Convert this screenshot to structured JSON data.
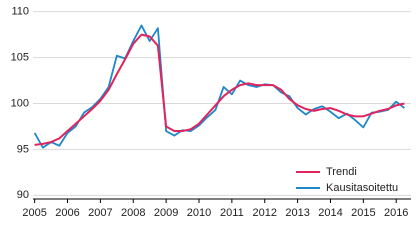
{
  "chart_data": {
    "type": "line",
    "x": [
      2005.0,
      2005.25,
      2005.5,
      2005.75,
      2006.0,
      2006.25,
      2006.5,
      2006.75,
      2007.0,
      2007.25,
      2007.5,
      2007.75,
      2008.0,
      2008.25,
      2008.5,
      2008.75,
      2009.0,
      2009.25,
      2009.5,
      2009.75,
      2010.0,
      2010.25,
      2010.5,
      2010.75,
      2011.0,
      2011.25,
      2011.5,
      2011.75,
      2012.0,
      2012.25,
      2012.5,
      2012.75,
      2013.0,
      2013.25,
      2013.5,
      2013.75,
      2014.0,
      2014.25,
      2014.5,
      2014.75,
      2015.0,
      2015.25,
      2015.5,
      2015.75,
      2016.0,
      2016.25
    ],
    "series": [
      {
        "name": "Trendi",
        "color": "#e0245e",
        "values": [
          95.5,
          95.6,
          95.8,
          96.2,
          97.0,
          97.8,
          98.6,
          99.4,
          100.3,
          101.5,
          103.2,
          104.8,
          106.5,
          107.5,
          107.3,
          106.3,
          97.5,
          97.0,
          97.0,
          97.2,
          97.8,
          98.8,
          99.8,
          100.8,
          101.5,
          102.0,
          102.2,
          102.0,
          102.0,
          102.0,
          101.5,
          100.5,
          99.8,
          99.4,
          99.2,
          99.4,
          99.5,
          99.2,
          98.8,
          98.6,
          98.6,
          98.9,
          99.2,
          99.4,
          99.8,
          100.0
        ]
      },
      {
        "name": "Kausitasoitettu",
        "color": "#1f87c9",
        "values": [
          96.8,
          95.2,
          95.8,
          95.4,
          96.8,
          97.5,
          99.0,
          99.6,
          100.5,
          101.8,
          105.2,
          104.9,
          106.8,
          108.5,
          106.8,
          108.2,
          97.0,
          96.5,
          97.1,
          97.0,
          97.6,
          98.5,
          99.3,
          101.8,
          101.0,
          102.5,
          102.0,
          101.8,
          102.1,
          102.0,
          101.2,
          100.8,
          99.5,
          98.8,
          99.4,
          99.7,
          99.1,
          98.4,
          98.9,
          98.2,
          97.4,
          99.0,
          99.1,
          99.3,
          100.2,
          99.5
        ]
      }
    ],
    "xlim": [
      2004.95,
      2016.45
    ],
    "xticks": [
      2005,
      2006,
      2007,
      2008,
      2009,
      2010,
      2011,
      2012,
      2013,
      2014,
      2015,
      2016
    ],
    "ylim": [
      89.6,
      110.4
    ],
    "yticks": [
      90,
      95,
      100,
      105,
      110
    ],
    "grid": true,
    "legend": "bottom-right"
  }
}
